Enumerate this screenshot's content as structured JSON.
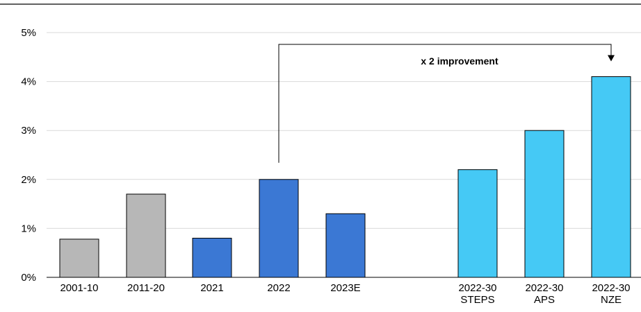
{
  "chart_data": {
    "type": "bar",
    "categories": [
      [
        "2001-10"
      ],
      [
        "2011-20"
      ],
      [
        "2021"
      ],
      [
        "2022"
      ],
      [
        "2023E"
      ],
      [
        "2022-30",
        "STEPS"
      ],
      [
        "2022-30",
        "APS"
      ],
      [
        "2022-30",
        "NZE"
      ]
    ],
    "values": [
      0.78,
      1.7,
      0.8,
      2.0,
      1.3,
      2.2,
      3.0,
      4.1
    ],
    "bar_colors": [
      "#b7b7b7",
      "#b7b7b7",
      "#3b78d4",
      "#3b78d4",
      "#3b78d4",
      "#45c9f5",
      "#45c9f5",
      "#45c9f5"
    ],
    "ylim": [
      0,
      5
    ],
    "yticks": [
      "0%",
      "1%",
      "2%",
      "3%",
      "4%",
      "5%"
    ],
    "grid": true,
    "annotation": {
      "text": "x 2 improvement",
      "from_category_index": 3,
      "to_category_index": 7
    }
  }
}
